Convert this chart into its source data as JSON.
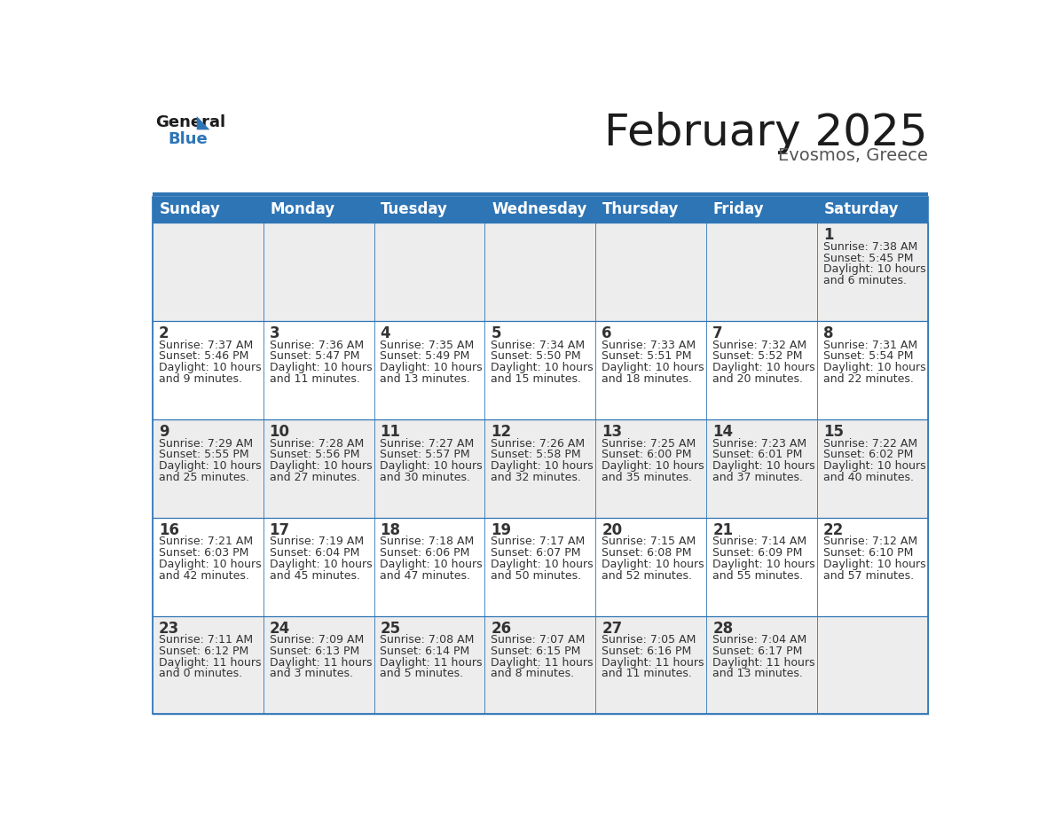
{
  "title": "February 2025",
  "subtitle": "Evosmos, Greece",
  "header_bg": "#2E75B6",
  "header_text_color": "#FFFFFF",
  "day_names": [
    "Sunday",
    "Monday",
    "Tuesday",
    "Wednesday",
    "Thursday",
    "Friday",
    "Saturday"
  ],
  "odd_row_bg": "#EDEDED",
  "even_row_bg": "#FFFFFF",
  "cell_text_color": "#333333",
  "day_num_color": "#333333",
  "border_color": "#2E75B6",
  "title_fontsize": 36,
  "subtitle_fontsize": 14,
  "day_header_fontsize": 12,
  "cell_day_fontsize": 12,
  "cell_text_fontsize": 9,
  "calendar_data": [
    [
      null,
      null,
      null,
      null,
      null,
      null,
      {
        "day": 1,
        "sunrise": "7:38 AM",
        "sunset": "5:45 PM",
        "dl1": "Daylight: 10 hours",
        "dl2": "and 6 minutes."
      }
    ],
    [
      {
        "day": 2,
        "sunrise": "7:37 AM",
        "sunset": "5:46 PM",
        "dl1": "Daylight: 10 hours",
        "dl2": "and 9 minutes."
      },
      {
        "day": 3,
        "sunrise": "7:36 AM",
        "sunset": "5:47 PM",
        "dl1": "Daylight: 10 hours",
        "dl2": "and 11 minutes."
      },
      {
        "day": 4,
        "sunrise": "7:35 AM",
        "sunset": "5:49 PM",
        "dl1": "Daylight: 10 hours",
        "dl2": "and 13 minutes."
      },
      {
        "day": 5,
        "sunrise": "7:34 AM",
        "sunset": "5:50 PM",
        "dl1": "Daylight: 10 hours",
        "dl2": "and 15 minutes."
      },
      {
        "day": 6,
        "sunrise": "7:33 AM",
        "sunset": "5:51 PM",
        "dl1": "Daylight: 10 hours",
        "dl2": "and 18 minutes."
      },
      {
        "day": 7,
        "sunrise": "7:32 AM",
        "sunset": "5:52 PM",
        "dl1": "Daylight: 10 hours",
        "dl2": "and 20 minutes."
      },
      {
        "day": 8,
        "sunrise": "7:31 AM",
        "sunset": "5:54 PM",
        "dl1": "Daylight: 10 hours",
        "dl2": "and 22 minutes."
      }
    ],
    [
      {
        "day": 9,
        "sunrise": "7:29 AM",
        "sunset": "5:55 PM",
        "dl1": "Daylight: 10 hours",
        "dl2": "and 25 minutes."
      },
      {
        "day": 10,
        "sunrise": "7:28 AM",
        "sunset": "5:56 PM",
        "dl1": "Daylight: 10 hours",
        "dl2": "and 27 minutes."
      },
      {
        "day": 11,
        "sunrise": "7:27 AM",
        "sunset": "5:57 PM",
        "dl1": "Daylight: 10 hours",
        "dl2": "and 30 minutes."
      },
      {
        "day": 12,
        "sunrise": "7:26 AM",
        "sunset": "5:58 PM",
        "dl1": "Daylight: 10 hours",
        "dl2": "and 32 minutes."
      },
      {
        "day": 13,
        "sunrise": "7:25 AM",
        "sunset": "6:00 PM",
        "dl1": "Daylight: 10 hours",
        "dl2": "and 35 minutes."
      },
      {
        "day": 14,
        "sunrise": "7:23 AM",
        "sunset": "6:01 PM",
        "dl1": "Daylight: 10 hours",
        "dl2": "and 37 minutes."
      },
      {
        "day": 15,
        "sunrise": "7:22 AM",
        "sunset": "6:02 PM",
        "dl1": "Daylight: 10 hours",
        "dl2": "and 40 minutes."
      }
    ],
    [
      {
        "day": 16,
        "sunrise": "7:21 AM",
        "sunset": "6:03 PM",
        "dl1": "Daylight: 10 hours",
        "dl2": "and 42 minutes."
      },
      {
        "day": 17,
        "sunrise": "7:19 AM",
        "sunset": "6:04 PM",
        "dl1": "Daylight: 10 hours",
        "dl2": "and 45 minutes."
      },
      {
        "day": 18,
        "sunrise": "7:18 AM",
        "sunset": "6:06 PM",
        "dl1": "Daylight: 10 hours",
        "dl2": "and 47 minutes."
      },
      {
        "day": 19,
        "sunrise": "7:17 AM",
        "sunset": "6:07 PM",
        "dl1": "Daylight: 10 hours",
        "dl2": "and 50 minutes."
      },
      {
        "day": 20,
        "sunrise": "7:15 AM",
        "sunset": "6:08 PM",
        "dl1": "Daylight: 10 hours",
        "dl2": "and 52 minutes."
      },
      {
        "day": 21,
        "sunrise": "7:14 AM",
        "sunset": "6:09 PM",
        "dl1": "Daylight: 10 hours",
        "dl2": "and 55 minutes."
      },
      {
        "day": 22,
        "sunrise": "7:12 AM",
        "sunset": "6:10 PM",
        "dl1": "Daylight: 10 hours",
        "dl2": "and 57 minutes."
      }
    ],
    [
      {
        "day": 23,
        "sunrise": "7:11 AM",
        "sunset": "6:12 PM",
        "dl1": "Daylight: 11 hours",
        "dl2": "and 0 minutes."
      },
      {
        "day": 24,
        "sunrise": "7:09 AM",
        "sunset": "6:13 PM",
        "dl1": "Daylight: 11 hours",
        "dl2": "and 3 minutes."
      },
      {
        "day": 25,
        "sunrise": "7:08 AM",
        "sunset": "6:14 PM",
        "dl1": "Daylight: 11 hours",
        "dl2": "and 5 minutes."
      },
      {
        "day": 26,
        "sunrise": "7:07 AM",
        "sunset": "6:15 PM",
        "dl1": "Daylight: 11 hours",
        "dl2": "and 8 minutes."
      },
      {
        "day": 27,
        "sunrise": "7:05 AM",
        "sunset": "6:16 PM",
        "dl1": "Daylight: 11 hours",
        "dl2": "and 11 minutes."
      },
      {
        "day": 28,
        "sunrise": "7:04 AM",
        "sunset": "6:17 PM",
        "dl1": "Daylight: 11 hours",
        "dl2": "and 13 minutes."
      },
      null
    ]
  ]
}
